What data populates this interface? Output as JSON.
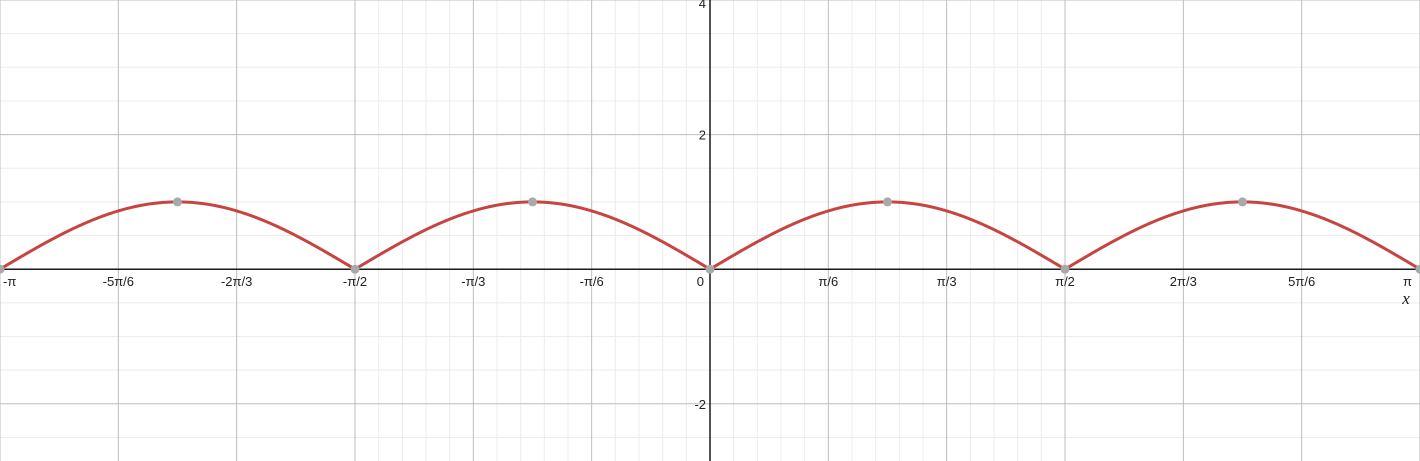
{
  "chart_data": {
    "type": "line",
    "title": "",
    "xlabel": "x",
    "ylabel": "",
    "xlim": [
      -3.14159,
      3.14159
    ],
    "ylim": [
      -2.85,
      4.0
    ],
    "grid": true,
    "x_ticks": [
      {
        "value": -3.14159,
        "label": "-π"
      },
      {
        "value": -2.61799,
        "label": "-5π/6"
      },
      {
        "value": -2.0944,
        "label": "-2π/3"
      },
      {
        "value": -1.5708,
        "label": "-π/2"
      },
      {
        "value": -1.0472,
        "label": "-π/3"
      },
      {
        "value": -0.5236,
        "label": "-π/6"
      },
      {
        "value": 0,
        "label": "0"
      },
      {
        "value": 0.5236,
        "label": "π/6"
      },
      {
        "value": 1.0472,
        "label": "π/3"
      },
      {
        "value": 1.5708,
        "label": "π/2"
      },
      {
        "value": 2.0944,
        "label": "2π/3"
      },
      {
        "value": 2.61799,
        "label": "5π/6"
      },
      {
        "value": 3.14159,
        "label": "π"
      }
    ],
    "y_ticks": [
      {
        "value": 4,
        "label": "4"
      },
      {
        "value": 2,
        "label": "2"
      },
      {
        "value": -2,
        "label": "-2"
      }
    ],
    "series": [
      {
        "function": "abs(sin(2x))",
        "color": "#c74440",
        "x": [
          -3.14159,
          -2.74889,
          -2.35619,
          -1.9635,
          -1.5708,
          -1.1781,
          -0.7854,
          -0.3927,
          0,
          0.3927,
          0.7854,
          1.1781,
          1.5708,
          1.9635,
          2.35619,
          2.74889,
          3.14159
        ],
        "y": [
          0,
          0.7071,
          1,
          0.7071,
          0,
          0.7071,
          1,
          0.7071,
          0,
          0.7071,
          1,
          0.7071,
          0,
          0.7071,
          1,
          0.7071,
          0
        ]
      }
    ],
    "points": [
      {
        "x": -3.14159,
        "y": 0
      },
      {
        "x": -2.35619,
        "y": 1
      },
      {
        "x": -1.5708,
        "y": 0
      },
      {
        "x": -0.7854,
        "y": 1
      },
      {
        "x": 0,
        "y": 0
      },
      {
        "x": 0.7854,
        "y": 1
      },
      {
        "x": 1.5708,
        "y": 0
      },
      {
        "x": 2.35619,
        "y": 1
      },
      {
        "x": 3.14159,
        "y": 0
      }
    ],
    "point_color": "#a9a9a9"
  }
}
